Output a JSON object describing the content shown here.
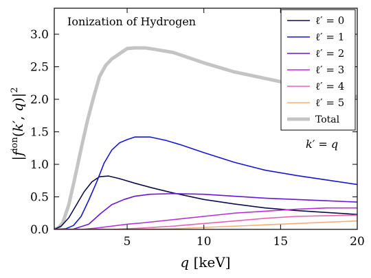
{
  "chart_data": {
    "type": "line",
    "title": "Ionization of Hydrogen",
    "annotation": "k′ = q",
    "xlabel": "q [keV]",
    "ylabel": "|f^ion(k′, q)|²",
    "xlim": [
      0.25,
      20
    ],
    "ylim": [
      0,
      3.4
    ],
    "x_ticks": [
      {
        "value": 5,
        "label": "5"
      },
      {
        "value": 10,
        "label": "10"
      },
      {
        "value": 15,
        "label": "15"
      },
      {
        "value": 20,
        "label": "20"
      }
    ],
    "y_ticks": [
      {
        "value": 0.0,
        "label": "0.0"
      },
      {
        "value": 0.5,
        "label": "0.5"
      },
      {
        "value": 1.0,
        "label": "1.0"
      },
      {
        "value": 1.5,
        "label": "1.5"
      },
      {
        "value": 2.0,
        "label": "2.0"
      },
      {
        "value": 2.5,
        "label": "2.5"
      },
      {
        "value": 3.0,
        "label": "3.0"
      }
    ],
    "legend_position": "top-right",
    "series": [
      {
        "name": "ℓ′ = 0",
        "color": "#0b0b4a",
        "points": [
          [
            0.25,
            0
          ],
          [
            0.7,
            0.05
          ],
          [
            1.2,
            0.18
          ],
          [
            1.7,
            0.38
          ],
          [
            2.2,
            0.58
          ],
          [
            2.7,
            0.73
          ],
          [
            3.2,
            0.81
          ],
          [
            3.8,
            0.82
          ],
          [
            4.5,
            0.78
          ],
          [
            5.5,
            0.71
          ],
          [
            6.6,
            0.64
          ],
          [
            8,
            0.56
          ],
          [
            10,
            0.46
          ],
          [
            12,
            0.39
          ],
          [
            14,
            0.33
          ],
          [
            16,
            0.29
          ],
          [
            18,
            0.26
          ],
          [
            20,
            0.23
          ]
        ]
      },
      {
        "name": "ℓ′ = 1",
        "color": "#1414dc",
        "points": [
          [
            0.25,
            0
          ],
          [
            1,
            0.01
          ],
          [
            1.5,
            0.06
          ],
          [
            2,
            0.2
          ],
          [
            2.5,
            0.45
          ],
          [
            3,
            0.72
          ],
          [
            3.5,
            1.02
          ],
          [
            4,
            1.22
          ],
          [
            4.5,
            1.33
          ],
          [
            5,
            1.38
          ],
          [
            5.5,
            1.42
          ],
          [
            6.5,
            1.42
          ],
          [
            7.5,
            1.37
          ],
          [
            8.5,
            1.3
          ],
          [
            10,
            1.18
          ],
          [
            12,
            1.03
          ],
          [
            14,
            0.91
          ],
          [
            16,
            0.83
          ],
          [
            18,
            0.76
          ],
          [
            20,
            0.69
          ]
        ]
      },
      {
        "name": "ℓ′ = 2",
        "color": "#6a12e0",
        "points": [
          [
            0.25,
            0
          ],
          [
            1.5,
            0.005
          ],
          [
            2.5,
            0.08
          ],
          [
            3.3,
            0.25
          ],
          [
            4,
            0.38
          ],
          [
            4.8,
            0.46
          ],
          [
            5.5,
            0.51
          ],
          [
            6.5,
            0.54
          ],
          [
            8,
            0.55
          ],
          [
            10,
            0.54
          ],
          [
            12,
            0.51
          ],
          [
            14,
            0.48
          ],
          [
            16,
            0.46
          ],
          [
            18,
            0.44
          ],
          [
            20,
            0.42
          ]
        ]
      },
      {
        "name": "ℓ′ = 3",
        "color": "#b52be0",
        "points": [
          [
            0.25,
            0
          ],
          [
            2,
            0
          ],
          [
            3,
            0.02
          ],
          [
            4,
            0.05
          ],
          [
            5,
            0.08
          ],
          [
            6,
            0.1
          ],
          [
            8,
            0.15
          ],
          [
            10,
            0.2
          ],
          [
            12,
            0.25
          ],
          [
            14,
            0.28
          ],
          [
            16,
            0.31
          ],
          [
            18,
            0.33
          ],
          [
            20,
            0.33
          ]
        ]
      },
      {
        "name": "ℓ′ = 4",
        "color": "#ec5fb0",
        "points": [
          [
            0.25,
            0
          ],
          [
            4,
            0
          ],
          [
            5,
            0.01
          ],
          [
            6,
            0.02
          ],
          [
            8,
            0.05
          ],
          [
            10,
            0.09
          ],
          [
            12,
            0.13
          ],
          [
            14,
            0.17
          ],
          [
            16,
            0.2
          ],
          [
            18,
            0.21
          ],
          [
            20,
            0.22
          ]
        ]
      },
      {
        "name": "ℓ′ = 5",
        "color": "#f5ad75",
        "points": [
          [
            0.25,
            0
          ],
          [
            6,
            0
          ],
          [
            7,
            0.005
          ],
          [
            8,
            0.01
          ],
          [
            10,
            0.03
          ],
          [
            12,
            0.05
          ],
          [
            14,
            0.07
          ],
          [
            16,
            0.09
          ],
          [
            18,
            0.11
          ],
          [
            20,
            0.13
          ]
        ]
      },
      {
        "name": "Total",
        "color": "#c4c4c4",
        "width": 5,
        "points": [
          [
            0.25,
            0
          ],
          [
            0.5,
            0.02
          ],
          [
            0.8,
            0.1
          ],
          [
            1.2,
            0.38
          ],
          [
            1.6,
            0.8
          ],
          [
            2,
            1.24
          ],
          [
            2.4,
            1.66
          ],
          [
            2.8,
            2.02
          ],
          [
            3.2,
            2.35
          ],
          [
            3.6,
            2.52
          ],
          [
            4,
            2.62
          ],
          [
            4.5,
            2.7
          ],
          [
            5,
            2.78
          ],
          [
            5.5,
            2.79
          ],
          [
            6.2,
            2.79
          ],
          [
            7,
            2.76
          ],
          [
            8,
            2.72
          ],
          [
            10,
            2.56
          ],
          [
            12,
            2.42
          ],
          [
            14,
            2.32
          ],
          [
            16,
            2.22
          ],
          [
            18,
            2.12
          ],
          [
            20,
            2.04
          ]
        ]
      }
    ]
  }
}
